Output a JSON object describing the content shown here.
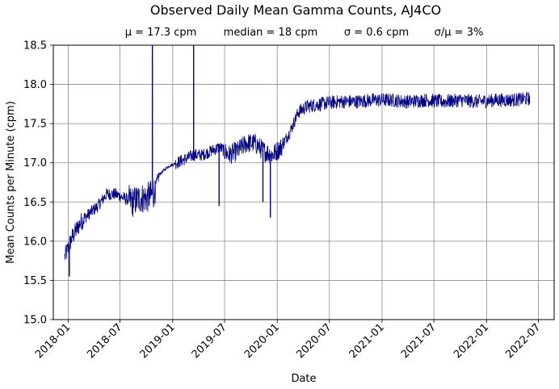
{
  "chart_data": {
    "type": "line",
    "title": "Observed Daily Mean Gamma Counts, AJ4CO",
    "subtitle": {
      "mean": "μ = 17.3 cpm",
      "median": "median = 18 cpm",
      "sigma": "σ = 0.6 cpm",
      "ratio": "σ/μ = 3%"
    },
    "xlabel": "Date",
    "ylabel": "Mean Counts per Minute (cpm)",
    "xlim": [
      "2017-11-10",
      "2022-08-25"
    ],
    "ylim": [
      15.0,
      18.5
    ],
    "x_ticks": [
      "2018-01",
      "2018-07",
      "2019-01",
      "2019-07",
      "2020-01",
      "2020-07",
      "2021-01",
      "2021-07",
      "2022-01",
      "2022-07"
    ],
    "y_ticks": [
      "15.0",
      "15.5",
      "16.0",
      "16.5",
      "17.0",
      "17.5",
      "18.0",
      "18.5"
    ],
    "grid": true,
    "series": [
      {
        "color": "#000080",
        "points": [
          [
            "2017-12-20",
            15.8
          ],
          [
            "2018-01-15",
            16.05
          ],
          [
            "2018-02-15",
            16.25
          ],
          [
            "2018-03-15",
            16.35
          ],
          [
            "2018-04-15",
            16.45
          ],
          [
            "2018-05-15",
            16.6
          ],
          [
            "2018-06-15",
            16.6
          ],
          [
            "2018-07-15",
            16.55
          ],
          [
            "2018-08-15",
            16.5
          ],
          [
            "2018-09-10",
            16.55
          ],
          [
            "2018-10-01",
            16.55
          ],
          [
            "2018-10-25",
            16.6
          ],
          [
            "2018-11-15",
            16.85
          ],
          [
            "2018-12-15",
            16.95
          ],
          [
            "2019-01-15",
            17.0
          ],
          [
            "2019-02-15",
            17.05
          ],
          [
            "2019-03-15",
            17.1
          ],
          [
            "2019-04-15",
            17.1
          ],
          [
            "2019-05-15",
            17.15
          ],
          [
            "2019-06-15",
            17.2
          ],
          [
            "2019-07-15",
            17.1
          ],
          [
            "2019-08-15",
            17.15
          ],
          [
            "2019-09-15",
            17.25
          ],
          [
            "2019-10-15",
            17.25
          ],
          [
            "2019-11-15",
            17.15
          ],
          [
            "2019-12-15",
            17.1
          ],
          [
            "2020-01-15",
            17.2
          ],
          [
            "2020-02-15",
            17.4
          ],
          [
            "2020-03-15",
            17.65
          ],
          [
            "2020-04-15",
            17.72
          ],
          [
            "2020-06-01",
            17.75
          ],
          [
            "2020-08-01",
            17.78
          ],
          [
            "2020-10-01",
            17.78
          ],
          [
            "2020-12-01",
            17.8
          ],
          [
            "2021-02-01",
            17.8
          ],
          [
            "2021-04-01",
            17.78
          ],
          [
            "2021-06-01",
            17.8
          ],
          [
            "2021-08-01",
            17.78
          ],
          [
            "2021-10-01",
            17.8
          ],
          [
            "2021-12-01",
            17.78
          ],
          [
            "2022-02-01",
            17.8
          ],
          [
            "2022-04-01",
            17.8
          ],
          [
            "2022-06-01",
            17.82
          ]
        ],
        "spikes": [
          [
            "2018-10-22",
            18.5
          ],
          [
            "2019-03-15",
            18.5
          ],
          [
            "2019-06-12",
            16.45
          ],
          [
            "2019-12-08",
            16.3
          ],
          [
            "2019-11-12",
            16.5
          ],
          [
            "2018-01-05",
            15.55
          ]
        ]
      }
    ]
  }
}
